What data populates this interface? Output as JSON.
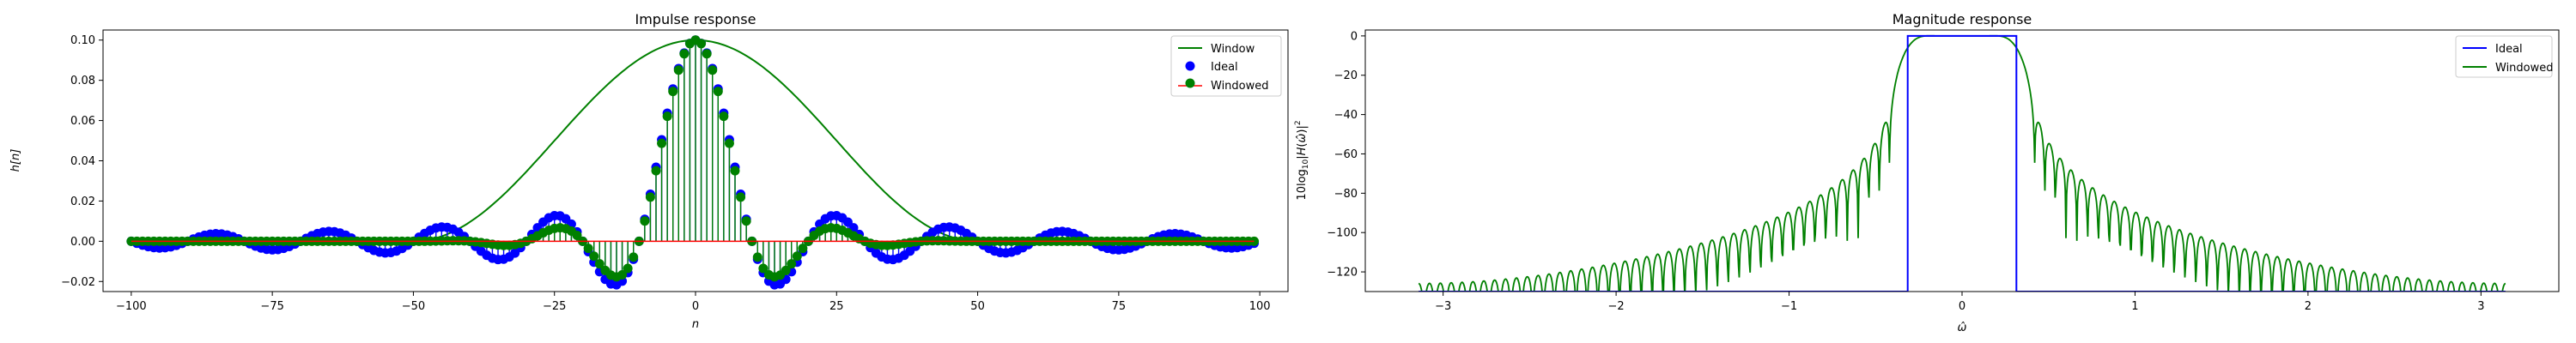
{
  "chart_data": [
    {
      "type": "line",
      "title": "Impulse response",
      "xlabel": "n",
      "ylabel": "h[n]",
      "xlim": [
        -105,
        105
      ],
      "ylim": [
        -0.025,
        0.105
      ],
      "xticks": [
        -100,
        -75,
        -50,
        -25,
        0,
        25,
        50,
        75,
        100
      ],
      "xtick_labels": [
        "−100",
        "−75",
        "−50",
        "−25",
        "0",
        "25",
        "50",
        "75",
        "100"
      ],
      "yticks": [
        -0.02,
        0.0,
        0.02,
        0.04,
        0.06,
        0.08,
        0.1
      ],
      "ytick_labels": [
        "−0.02",
        "0.00",
        "0.02",
        "0.04",
        "0.06",
        "0.08",
        "0.10"
      ],
      "legend_position": "top-right",
      "n_range": [
        -100,
        99
      ],
      "cutoff": 0.1,
      "window": "Hann",
      "window_halfwidth": 50,
      "series": [
        {
          "name": "Window",
          "kind": "line",
          "color": "#008000"
        },
        {
          "name": "Ideal",
          "kind": "stem",
          "color": "#0000ff",
          "baseline_color": "#ff0000"
        },
        {
          "name": "Windowed",
          "kind": "stem",
          "color": "#008000",
          "baseline_color": "#ff0000"
        }
      ]
    },
    {
      "type": "line",
      "title": "Magnitude response",
      "xlabel": "ω̂",
      "ylabel": "10log10|H(ω̂)|2",
      "xlim": [
        -3.45,
        3.45
      ],
      "ylim": [
        -130,
        3
      ],
      "xticks": [
        -3,
        -2,
        -1,
        0,
        1,
        2,
        3
      ],
      "xtick_labels": [
        "−3",
        "−2",
        "−1",
        "0",
        "1",
        "2",
        "3"
      ],
      "yticks": [
        0,
        -20,
        -40,
        -60,
        -80,
        -100,
        -120
      ],
      "ytick_labels": [
        "0",
        "−20",
        "−40",
        "−60",
        "−80",
        "−100",
        "−120"
      ],
      "legend_position": "top-right",
      "cutoff_omega": 0.314,
      "series": [
        {
          "name": "Ideal",
          "kind": "line",
          "color": "#0000ff",
          "passband_db": 0,
          "stopband_db": -130
        },
        {
          "name": "Windowed",
          "kind": "line",
          "color": "#008000"
        }
      ]
    }
  ]
}
